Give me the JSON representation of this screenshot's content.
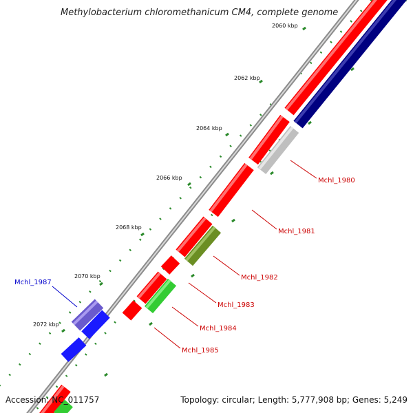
{
  "title": "Methylobacterium chloromethanicum CM4, complete genome",
  "footer": {
    "accession_label": "Accession: NC_011757",
    "stats_label": "Topology: circular; Length: 5,777,908 bp; Genes: 5,249"
  },
  "colors": {
    "backbone": "#8c8c8c",
    "tick": "#2b8a2b",
    "forward_gene": "#ff0000",
    "reverse_gene": "#1a1aff",
    "other_strand": "#000080",
    "label_forward": "#cc0000",
    "label_reverse": "#0000cc"
  },
  "tick_labels": [
    "2060 kbp",
    "2062 kbp",
    "2064 kbp",
    "2066 kbp",
    "2068 kbp",
    "2070 kbp",
    "2072 kbp"
  ],
  "gene_labels": [
    {
      "name": "Mchl_1980",
      "color": "#cc0000"
    },
    {
      "name": "Mchl_1981",
      "color": "#cc0000"
    },
    {
      "name": "Mchl_1982",
      "color": "#cc0000"
    },
    {
      "name": "Mchl_1983",
      "color": "#cc0000"
    },
    {
      "name": "Mchl_1984",
      "color": "#cc0000"
    },
    {
      "name": "Mchl_1985",
      "color": "#cc0000"
    },
    {
      "name": "Mchl_1987",
      "color": "#0000cc"
    }
  ]
}
